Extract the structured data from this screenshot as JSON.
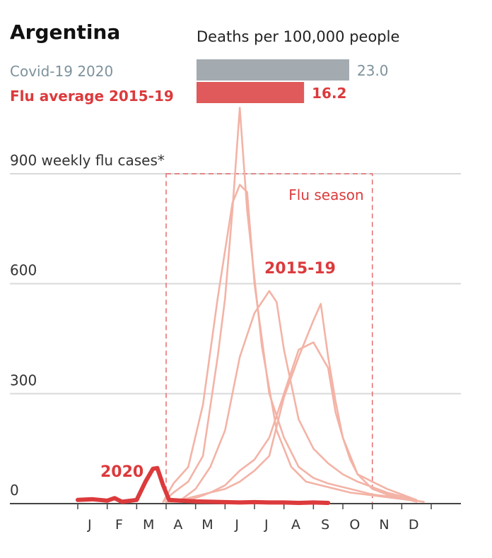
{
  "chart_data": {
    "type": "line",
    "title": "Argentina",
    "deaths": {
      "title": "Deaths per 100,000 people",
      "items": [
        {
          "name": "Covid-19 2020",
          "value": 23.0,
          "label": "23.0",
          "color": "#a3abb0",
          "text_color": "#7d929c"
        },
        {
          "name": "Flu average 2015-19",
          "value": 16.2,
          "label": "16.2",
          "color": "#e05a5b",
          "text_color": "#dc3a3c"
        }
      ]
    },
    "yaxis": {
      "label": "900 weekly flu cases*",
      "ticks": [
        {
          "value": 0,
          "label": "0"
        },
        {
          "value": 300,
          "label": "300"
        },
        {
          "value": 600,
          "label": "600"
        },
        {
          "value": 900,
          "label": "900"
        }
      ],
      "ylim": [
        0,
        1050
      ],
      "grid": true
    },
    "xaxis": {
      "categories": [
        "J",
        "F",
        "M",
        "A",
        "M",
        "J",
        "J",
        "A",
        "S",
        "O",
        "N",
        "D"
      ],
      "xlim": [
        0,
        12
      ]
    },
    "flu_season": {
      "label": "Flu season",
      "start": 3.0,
      "end": 10.0
    },
    "historical_label": "2015-19",
    "current_label": "2020",
    "colors": {
      "historical": "#f3b3a6",
      "current": "#dc3a3c",
      "grid": "#d9d9d9",
      "season": "#e66a6c"
    },
    "series": [
      {
        "name": "2015",
        "x": [
          2.9,
          3.25,
          3.75,
          4.25,
          4.75,
          5.0,
          5.25,
          5.5,
          5.75,
          6.25,
          6.75,
          7.25,
          7.75,
          8.25,
          8.75,
          9.25,
          9.75,
          10.25,
          10.75,
          11.25,
          11.75
        ],
        "y": [
          5,
          30,
          60,
          130,
          400,
          560,
          800,
          1080,
          800,
          430,
          200,
          100,
          60,
          50,
          40,
          30,
          25,
          20,
          15,
          10,
          5
        ]
      },
      {
        "name": "2016",
        "x": [
          2.9,
          3.25,
          3.75,
          4.25,
          4.75,
          5.25,
          5.5,
          5.75,
          6.0,
          6.5,
          7.0,
          7.5,
          8.0,
          8.5,
          9.0,
          9.5,
          10.0,
          10.5,
          11.0,
          11.5
        ],
        "y": [
          5,
          55,
          100,
          270,
          560,
          820,
          870,
          850,
          600,
          300,
          180,
          100,
          70,
          55,
          45,
          35,
          25,
          20,
          15,
          8
        ]
      },
      {
        "name": "2017",
        "x": [
          3.0,
          3.5,
          4.0,
          4.5,
          5.0,
          5.5,
          6.0,
          6.5,
          6.75,
          7.0,
          7.5,
          8.0,
          8.5,
          9.0,
          9.5,
          10.0,
          10.5,
          11.0,
          11.5
        ],
        "y": [
          5,
          10,
          40,
          100,
          200,
          400,
          520,
          580,
          550,
          420,
          230,
          150,
          110,
          80,
          60,
          45,
          30,
          20,
          10
        ]
      },
      {
        "name": "2018",
        "x": [
          3.0,
          3.5,
          4.0,
          4.5,
          5.0,
          5.5,
          6.0,
          6.5,
          7.0,
          7.5,
          8.0,
          8.5,
          8.75,
          9.0,
          9.25,
          9.5,
          10.0,
          10.5,
          11.0,
          11.5
        ],
        "y": [
          5,
          5,
          15,
          30,
          50,
          90,
          120,
          180,
          300,
          420,
          440,
          370,
          250,
          180,
          120,
          80,
          60,
          40,
          25,
          10
        ]
      },
      {
        "name": "2019",
        "x": [
          3.0,
          3.5,
          4.0,
          4.5,
          5.0,
          5.5,
          6.0,
          6.5,
          7.0,
          7.5,
          8.0,
          8.25,
          8.5,
          8.75,
          9.0,
          9.5,
          10.0,
          10.5,
          11.0,
          11.5
        ],
        "y": [
          5,
          10,
          20,
          30,
          40,
          60,
          90,
          130,
          290,
          400,
          500,
          545,
          400,
          280,
          180,
          80,
          40,
          25,
          15,
          5
        ]
      },
      {
        "name": "2020",
        "current": true,
        "x": [
          0.0,
          0.5,
          1.0,
          1.25,
          1.5,
          2.0,
          2.3,
          2.55,
          2.7,
          2.9,
          3.1,
          3.5,
          4.0,
          4.5,
          5.0,
          5.5,
          6.0,
          6.5,
          7.0,
          7.5,
          8.0,
          8.5
        ],
        "y": [
          10,
          12,
          8,
          15,
          5,
          10,
          60,
          95,
          97,
          50,
          10,
          8,
          6,
          5,
          4,
          3,
          4,
          3,
          3,
          2,
          3,
          2
        ]
      }
    ]
  }
}
